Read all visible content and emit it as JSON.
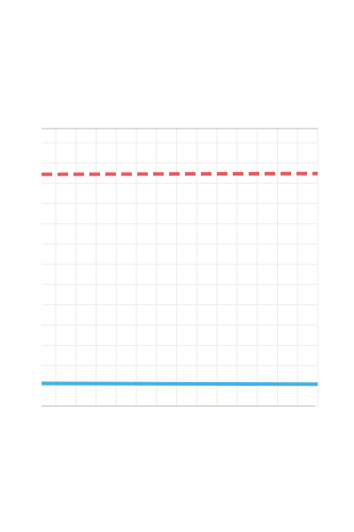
{
  "chart_data": {
    "type": "line",
    "title": "",
    "xlabel": "",
    "ylabel": "",
    "grid": true,
    "x": [
      0,
      1
    ],
    "series": [
      {
        "values": [
          0.835,
          0.838
        ],
        "color": "#e85a5f",
        "style": "dashed"
      },
      {
        "values": [
          0.082,
          0.079
        ],
        "color": "#44b0e8",
        "style": "solid"
      }
    ],
    "xlim": [
      0,
      1
    ],
    "ylim": [
      0,
      1
    ],
    "gridline_color": "#ececec",
    "axis_color": "#b8b8b8"
  }
}
